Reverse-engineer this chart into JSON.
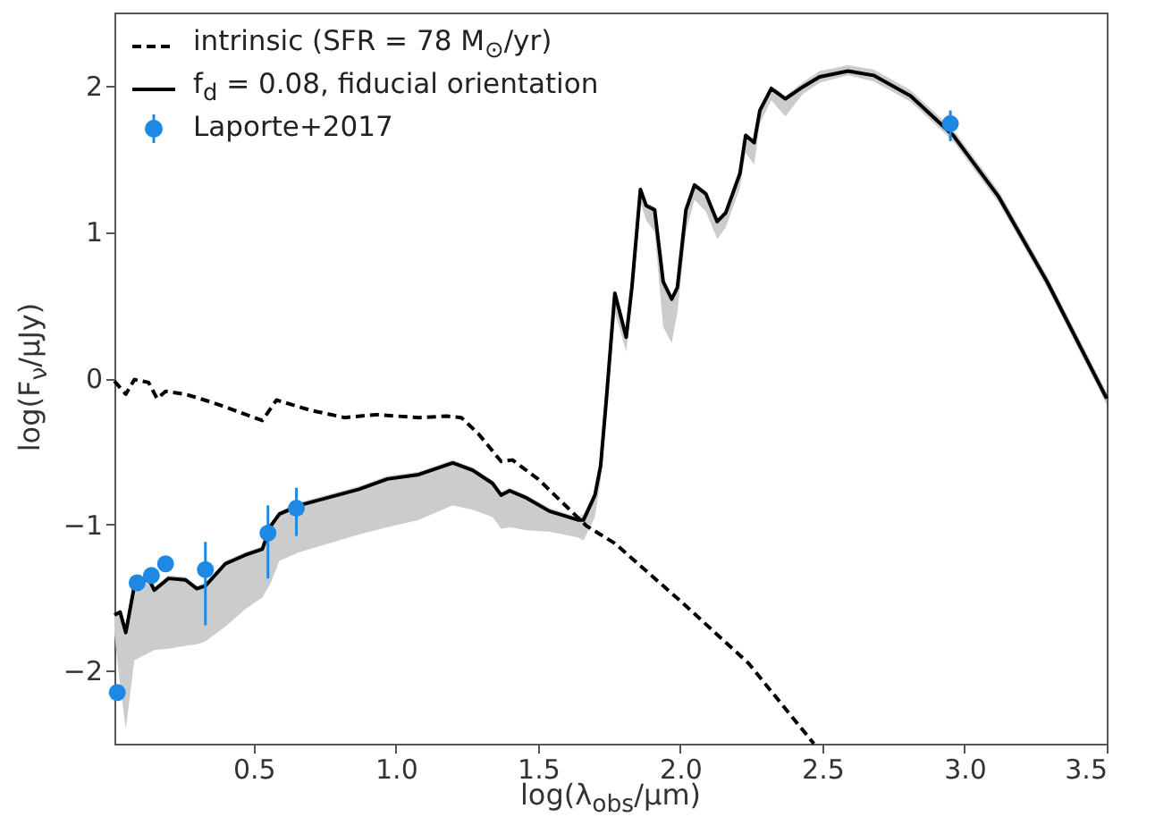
{
  "chart_data": {
    "type": "line",
    "xlabel": "log(λ$_{obs}$/μm)",
    "ylabel": "log(F$_{ν}$/μJy)",
    "xlim": [
      0.01,
      3.5
    ],
    "ylim": [
      -2.5,
      2.5
    ],
    "xticks": [
      {
        "value": 0.5,
        "label": "0.5"
      },
      {
        "value": 1.0,
        "label": "1.0"
      },
      {
        "value": 1.5,
        "label": "1.5"
      },
      {
        "value": 2.0,
        "label": "2.0"
      },
      {
        "value": 2.5,
        "label": "2.5"
      },
      {
        "value": 3.0,
        "label": "3.0"
      },
      {
        "value": 3.5,
        "label": "3.5"
      }
    ],
    "yticks": [
      {
        "value": -2,
        "label": "−2"
      },
      {
        "value": -1,
        "label": "−1"
      },
      0,
      1,
      2
    ],
    "grid": false,
    "legend": "top left",
    "series": [
      {
        "name": "intrinsic (SFR = 78 M$_{⊙}$/yr)",
        "type": "line",
        "line_style": "dashed",
        "color": "#000000",
        "x": [
          0.01,
          0.05,
          0.08,
          0.13,
          0.16,
          0.19,
          0.26,
          0.36,
          0.53,
          0.58,
          0.7,
          0.82,
          0.93,
          1.08,
          1.18,
          1.23,
          1.29,
          1.37,
          1.41,
          1.5,
          1.67,
          1.77,
          2.01,
          2.24,
          2.47
        ],
        "values": [
          -0.02,
          -0.11,
          -0.01,
          -0.03,
          -0.14,
          -0.09,
          -0.11,
          -0.17,
          -0.29,
          -0.15,
          -0.22,
          -0.27,
          -0.25,
          -0.27,
          -0.26,
          -0.27,
          -0.38,
          -0.57,
          -0.56,
          -0.69,
          -1.01,
          -1.13,
          -1.54,
          -1.95,
          -2.5
        ]
      },
      {
        "name": "f$_{d}$ = 0.08, fiducial orientation",
        "type": "line",
        "line_style": "solid",
        "color": "#000000",
        "x": [
          0.01,
          0.03,
          0.05,
          0.08,
          0.13,
          0.15,
          0.2,
          0.26,
          0.3,
          0.33,
          0.4,
          0.47,
          0.53,
          0.56,
          0.59,
          0.66,
          0.87,
          0.97,
          1.08,
          1.14,
          1.2,
          1.27,
          1.34,
          1.37,
          1.4,
          1.46,
          1.54,
          1.64,
          1.66,
          1.7,
          1.72,
          1.74,
          1.77,
          1.81,
          1.83,
          1.86,
          1.88,
          1.91,
          1.94,
          1.97,
          1.99,
          2.02,
          2.05,
          2.09,
          2.13,
          2.16,
          2.21,
          2.23,
          2.26,
          2.28,
          2.32,
          2.37,
          2.43,
          2.49,
          2.59,
          2.68,
          2.81,
          2.96,
          3.12,
          3.29,
          3.5
        ],
        "values": [
          -1.62,
          -1.6,
          -1.74,
          -1.42,
          -1.37,
          -1.45,
          -1.37,
          -1.38,
          -1.44,
          -1.42,
          -1.27,
          -1.21,
          -1.17,
          -1.01,
          -0.93,
          -0.87,
          -0.76,
          -0.69,
          -0.66,
          -0.62,
          -0.58,
          -0.63,
          -0.72,
          -0.8,
          -0.77,
          -0.82,
          -0.91,
          -0.97,
          -0.97,
          -0.8,
          -0.6,
          -0.15,
          0.58,
          0.28,
          0.62,
          1.29,
          1.18,
          1.15,
          0.66,
          0.54,
          0.62,
          1.15,
          1.32,
          1.26,
          1.07,
          1.13,
          1.4,
          1.66,
          1.61,
          1.83,
          1.98,
          1.91,
          1.99,
          2.06,
          2.1,
          2.07,
          1.93,
          1.66,
          1.24,
          0.66,
          -0.14
        ],
        "lower": [
          -1.75,
          -2.1,
          -2.4,
          -1.93,
          -1.88,
          -1.86,
          -1.85,
          -1.83,
          -1.82,
          -1.8,
          -1.7,
          -1.58,
          -1.5,
          -1.4,
          -1.25,
          -1.19,
          -1.07,
          -1.02,
          -0.97,
          -0.92,
          -0.87,
          -0.9,
          -0.95,
          -1.03,
          -1.02,
          -1.04,
          -1.05,
          -1.09,
          -1.11,
          -0.95,
          -0.7,
          -0.25,
          0.45,
          0.18,
          0.52,
          1.2,
          1.08,
          1.0,
          0.35,
          0.24,
          0.45,
          1.0,
          1.22,
          1.14,
          0.95,
          1.03,
          1.3,
          1.54,
          1.46,
          1.74,
          1.9,
          1.79,
          1.94,
          2.02,
          2.07,
          2.03,
          1.89,
          1.62,
          1.2,
          0.62,
          -0.18
        ],
        "upper": [
          -1.62,
          -1.58,
          -1.72,
          -1.4,
          -1.35,
          -1.43,
          -1.35,
          -1.36,
          -1.42,
          -1.4,
          -1.25,
          -1.19,
          -1.15,
          -0.99,
          -0.91,
          -0.85,
          -0.74,
          -0.67,
          -0.64,
          -0.6,
          -0.56,
          -0.61,
          -0.7,
          -0.78,
          -0.75,
          -0.8,
          -0.89,
          -0.95,
          -0.93,
          -0.78,
          -0.58,
          -0.13,
          0.6,
          0.3,
          0.64,
          1.31,
          1.2,
          1.17,
          0.68,
          0.56,
          0.64,
          1.17,
          1.34,
          1.28,
          1.09,
          1.15,
          1.42,
          1.68,
          1.63,
          1.85,
          2.0,
          1.93,
          2.02,
          2.1,
          2.14,
          2.11,
          1.97,
          1.7,
          1.28,
          0.7,
          -0.1
        ]
      },
      {
        "name": "Laporte+2017",
        "type": "scatter",
        "marker": "circle",
        "color": "#1e88e5",
        "x": [
          0.02,
          0.09,
          0.14,
          0.19,
          0.33,
          0.55,
          0.65,
          2.95
        ],
        "values": [
          -2.15,
          -1.4,
          -1.35,
          -1.27,
          -1.31,
          -1.06,
          -0.89,
          1.74
        ],
        "errors": [
          null,
          null,
          null,
          null,
          [
            -1.69,
            -1.12
          ],
          [
            -1.37,
            -0.87
          ],
          [
            -1.08,
            -0.75
          ],
          [
            1.62,
            1.83
          ]
        ]
      }
    ]
  }
}
